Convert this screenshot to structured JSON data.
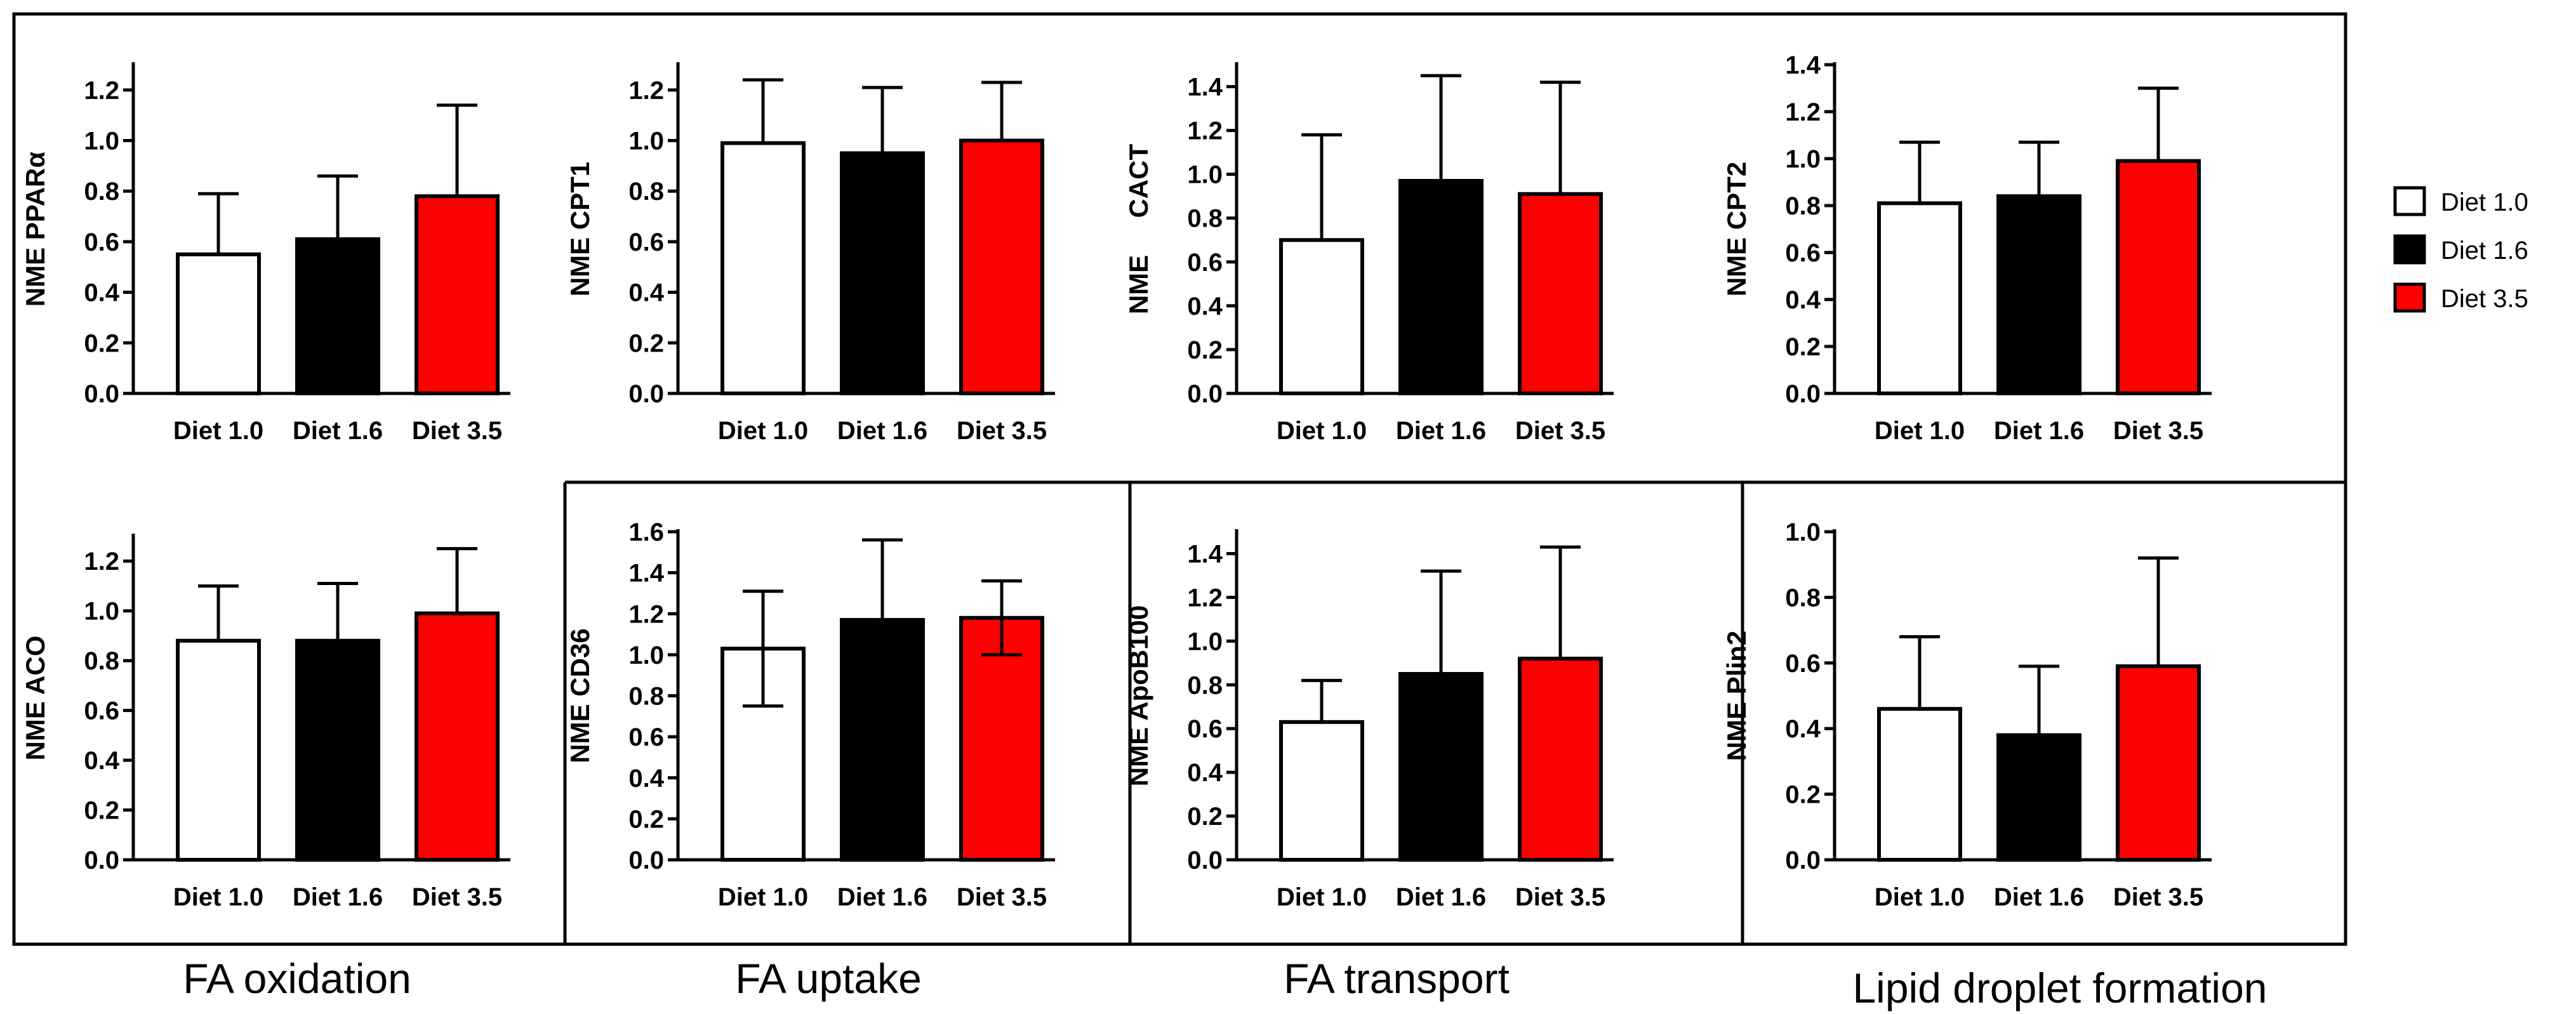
{
  "groups": [
    "FA oxidation",
    "FA uptake",
    "FA transport",
    "Lipid droplet formation"
  ],
  "legend": [
    {
      "label": "Diet 1.0",
      "color": "#ffffff"
    },
    {
      "label": "Diet 1.6",
      "color": "#000000"
    },
    {
      "label": "Diet 3.5",
      "color": "#ff0000"
    }
  ],
  "chart_data": [
    {
      "type": "bar",
      "title": "",
      "ylabel": "NME PPARα",
      "categories": [
        "Diet 1.0",
        "Diet 1.6",
        "Diet 3.5"
      ],
      "values": [
        0.55,
        0.61,
        0.78
      ],
      "errors_up": [
        0.24,
        0.25,
        0.36
      ],
      "errors_down": [
        0,
        0,
        0
      ],
      "colors": [
        "#ffffff",
        "#000000",
        "#ff0000"
      ],
      "ylim": [
        0,
        1.3
      ],
      "yticks": [
        "0.0",
        "0.2",
        "0.4",
        "0.6",
        "0.8",
        "1.0",
        "1.2"
      ],
      "group": "FA oxidation"
    },
    {
      "type": "bar",
      "title": "",
      "ylabel": "NME CPT1",
      "categories": [
        "Diet 1.0",
        "Diet 1.6",
        "Diet 3.5"
      ],
      "values": [
        0.99,
        0.95,
        1.0
      ],
      "errors_up": [
        0.25,
        0.26,
        0.23
      ],
      "errors_down": [
        0,
        0,
        0
      ],
      "colors": [
        "#ffffff",
        "#000000",
        "#ff0000"
      ],
      "ylim": [
        0,
        1.3
      ],
      "yticks": [
        "0.0",
        "0.2",
        "0.4",
        "0.6",
        "0.8",
        "1.0",
        "1.2"
      ],
      "group": "FA oxidation"
    },
    {
      "type": "bar",
      "title": "",
      "ylabel": "NME     CACT",
      "categories": [
        "Diet 1.0",
        "Diet 1.6",
        "Diet 3.5"
      ],
      "values": [
        0.7,
        0.97,
        0.91
      ],
      "errors_up": [
        0.48,
        0.48,
        0.51
      ],
      "errors_down": [
        0,
        0,
        0
      ],
      "colors": [
        "#ffffff",
        "#000000",
        "#ff0000"
      ],
      "ylim": [
        0,
        1.5
      ],
      "yticks": [
        "0.0",
        "0.2",
        "0.4",
        "0.6",
        "0.8",
        "1.0",
        "1.2",
        "1.4"
      ],
      "group": "FA oxidation"
    },
    {
      "type": "bar",
      "title": "",
      "ylabel": "NME CPT2",
      "categories": [
        "Diet 1.0",
        "Diet 1.6",
        "Diet 3.5"
      ],
      "values": [
        0.81,
        0.84,
        0.99
      ],
      "errors_up": [
        0.26,
        0.23,
        0.31
      ],
      "errors_down": [
        0,
        0,
        0
      ],
      "colors": [
        "#ffffff",
        "#000000",
        "#ff0000"
      ],
      "ylim": [
        0,
        1.4
      ],
      "yticks": [
        "0.0",
        "0.2",
        "0.4",
        "0.6",
        "0.8",
        "1.0",
        "1.2",
        "1.4"
      ],
      "group": "FA oxidation"
    },
    {
      "type": "bar",
      "title": "",
      "ylabel": "NME ACO",
      "categories": [
        "Diet 1.0",
        "Diet 1.6",
        "Diet 3.5"
      ],
      "values": [
        0.88,
        0.88,
        0.99
      ],
      "errors_up": [
        0.22,
        0.23,
        0.26
      ],
      "errors_down": [
        0,
        0,
        0
      ],
      "colors": [
        "#ffffff",
        "#000000",
        "#ff0000"
      ],
      "ylim": [
        0,
        1.3
      ],
      "yticks": [
        "0.0",
        "0.2",
        "0.4",
        "0.6",
        "0.8",
        "1.0",
        "1.2"
      ],
      "group": "FA oxidation"
    },
    {
      "type": "bar",
      "title": "",
      "ylabel": "NME CD36",
      "categories": [
        "Diet 1.0",
        "Diet 1.6",
        "Diet 3.5"
      ],
      "values": [
        1.03,
        1.17,
        1.18
      ],
      "errors_up": [
        0.28,
        0.39,
        0.18
      ],
      "errors_down": [
        0.28,
        0,
        0.18
      ],
      "colors": [
        "#ffffff",
        "#000000",
        "#ff0000"
      ],
      "ylim": [
        0,
        1.6
      ],
      "yticks": [
        "0.0",
        "0.2",
        "0.4",
        "0.6",
        "0.8",
        "1.0",
        "1.2",
        "1.4",
        "1.6"
      ],
      "group": "FA uptake"
    },
    {
      "type": "bar",
      "title": "",
      "ylabel": "NME ApoB100",
      "categories": [
        "Diet 1.0",
        "Diet 1.6",
        "Diet 3.5"
      ],
      "values": [
        0.63,
        0.85,
        0.92
      ],
      "errors_up": [
        0.19,
        0.47,
        0.51
      ],
      "errors_down": [
        0,
        0,
        0
      ],
      "colors": [
        "#ffffff",
        "#000000",
        "#ff0000"
      ],
      "ylim": [
        0,
        1.5
      ],
      "yticks": [
        "0.0",
        "0.2",
        "0.4",
        "0.6",
        "0.8",
        "1.0",
        "1.2",
        "1.4"
      ],
      "group": "FA transport"
    },
    {
      "type": "bar",
      "title": "",
      "ylabel": "NME Plin2",
      "categories": [
        "Diet 1.0",
        "Diet 1.6",
        "Diet 3.5"
      ],
      "values": [
        0.46,
        0.38,
        0.59
      ],
      "errors_up": [
        0.22,
        0.21,
        0.33
      ],
      "errors_down": [
        0,
        0,
        0
      ],
      "colors": [
        "#ffffff",
        "#000000",
        "#ff0000"
      ],
      "ylim": [
        0,
        1.0
      ],
      "yticks": [
        "0.0",
        "0.2",
        "0.4",
        "0.6",
        "0.8",
        "1.0"
      ],
      "group": "Lipid droplet formation"
    }
  ]
}
